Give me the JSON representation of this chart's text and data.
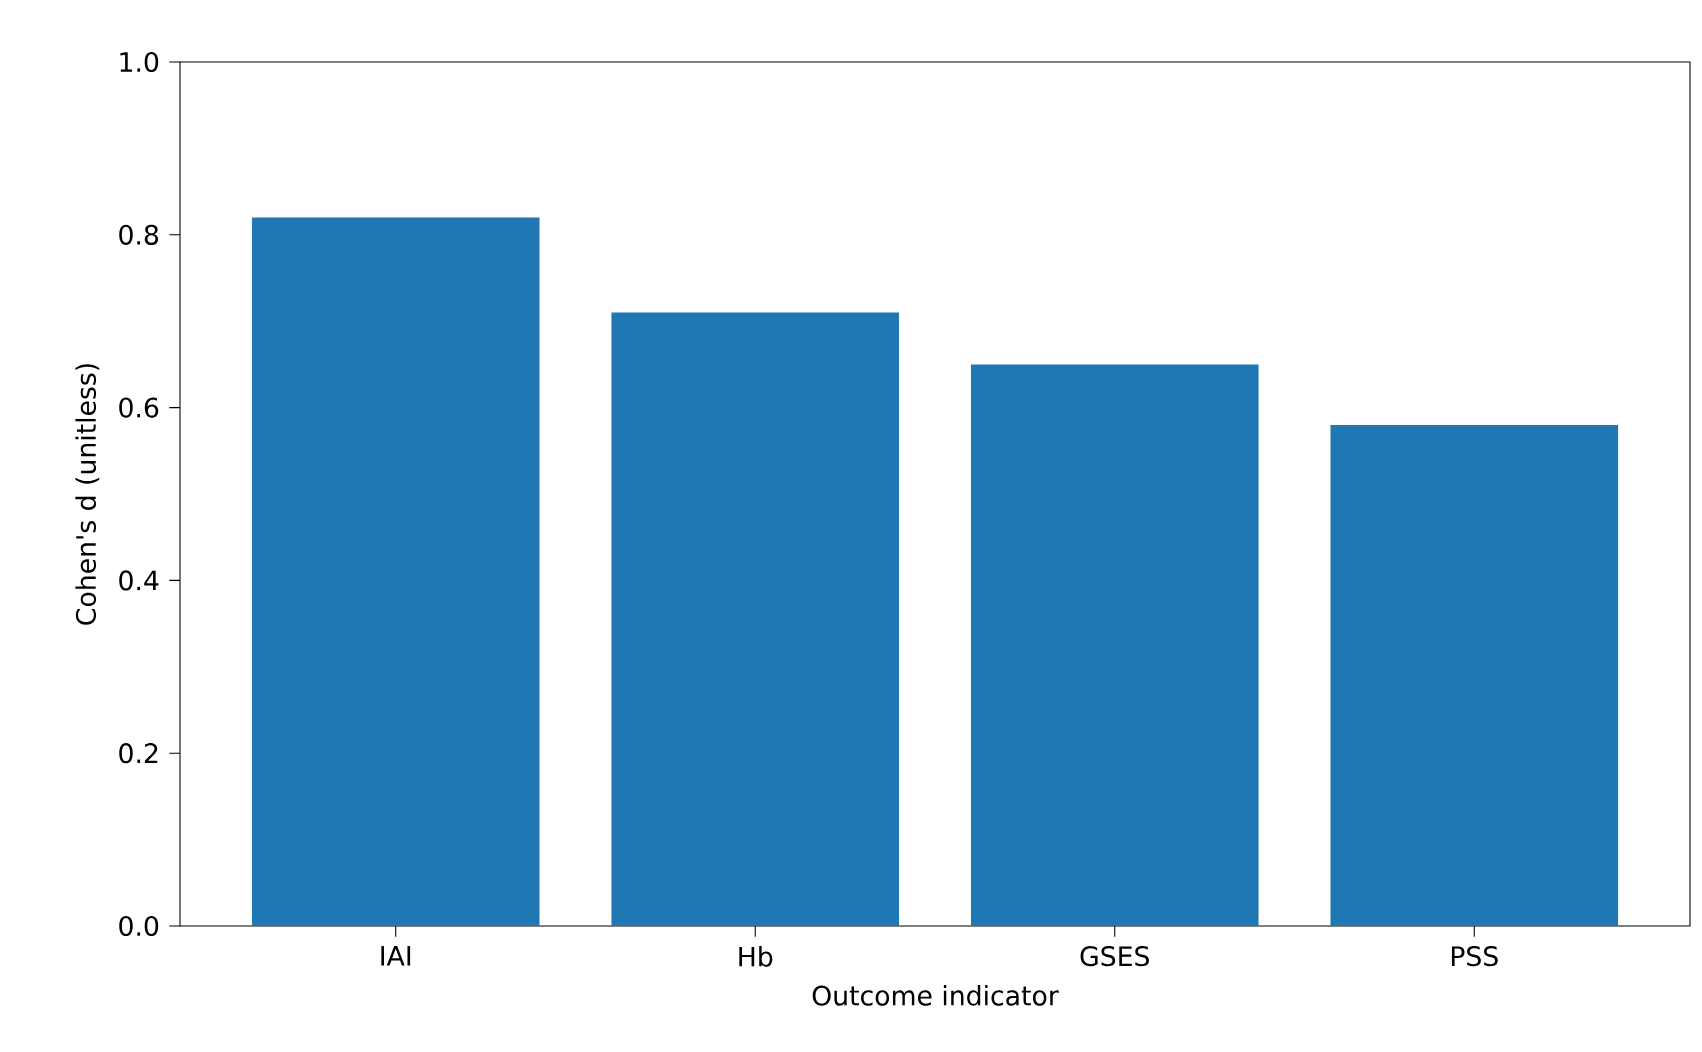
{
  "chart_data": {
    "type": "bar",
    "xlabel": "Outcome indicator",
    "ylabel": "Cohen's d (unitless)",
    "categories": [
      "IAI",
      "Hb",
      "GSES",
      "PSS"
    ],
    "values": [
      0.82,
      0.71,
      0.65,
      0.58
    ],
    "color": "#1f77b4",
    "ylim": [
      0,
      1.0
    ],
    "yticks": [
      {
        "value": 0,
        "label": "0.0"
      },
      {
        "value": 0.2,
        "label": "0.2"
      },
      {
        "value": 0.4,
        "label": "0.4"
      },
      {
        "value": 0.6,
        "label": "0.6"
      },
      {
        "value": 0.8,
        "label": "0.8"
      },
      {
        "value": 1.0,
        "label": "1.0"
      }
    ]
  }
}
